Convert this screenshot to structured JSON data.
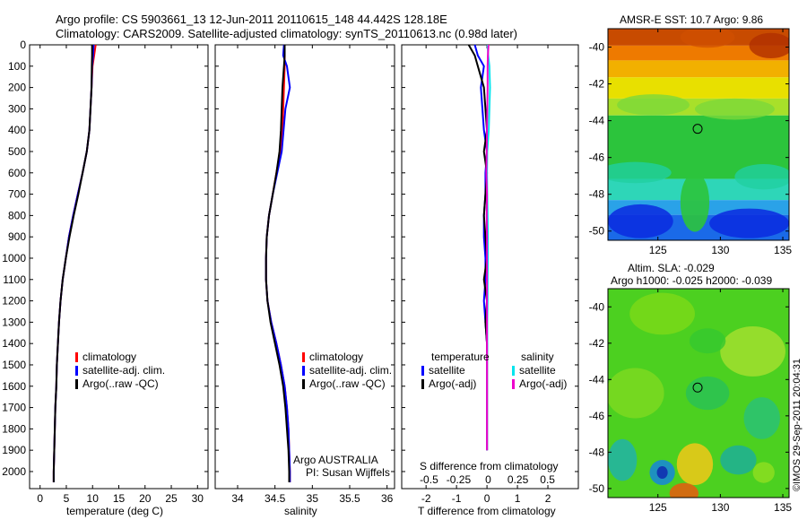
{
  "header": {
    "title_line1": "Argo profile: CS 5903661_13 12-Jun-2011 20110615_148 44.442S 128.18E",
    "title_line2": "Climatology: CARS2009. Satellite-adjusted climatology: synTS_20110613.nc (0.98d later)"
  },
  "map_sst": {
    "title": "AMSR-E SST: 10.7  Argo: 9.86",
    "xticks": [
      "125",
      "130",
      "135"
    ],
    "yticks": [
      "-40",
      "-42",
      "-44",
      "-46",
      "-48",
      "-50"
    ]
  },
  "map_sla": {
    "title1": "Altim. SLA: -0.029",
    "title2": "Argo h1000: -0.025 h2000: -0.039",
    "xticks": [
      "125",
      "130",
      "135"
    ],
    "yticks": [
      "-40",
      "-42",
      "-44",
      "-46",
      "-48",
      "-50"
    ]
  },
  "credit": "©IMOS 29-Sep-2011 20:04:31",
  "legends": {
    "climatology": "climatology",
    "satellite_adj": "satellite-adj. clim.",
    "argo": "Argo(..raw -QC)",
    "temperature": "temperature",
    "salinity": "salinity",
    "satellite": "satellite",
    "argo_adj": "Argo(-adj)"
  },
  "annotations": {
    "argo_country": "Argo AUSTRALIA",
    "pi": "PI: Susan Wijffels",
    "s_diff_label": "S difference from climatology",
    "s_diff_ticks": [
      "-0.5",
      "-0.25",
      "0",
      "0.25",
      "0.5"
    ]
  },
  "colors": {
    "climatology": "#ff0000",
    "satellite_adj": "#0000ff",
    "argo": "#000000",
    "sal_satellite": "#00e5ee",
    "sal_argo": "#ee00cc",
    "float_marker": "#000000"
  },
  "chart_data": [
    {
      "type": "line",
      "xlabel": "temperature (deg C)",
      "ylabel": "",
      "xlim": [
        -2,
        32
      ],
      "ylim": [
        2080,
        0
      ],
      "xticks": [
        0,
        5,
        10,
        15,
        20,
        25,
        30
      ],
      "yticks": [
        0,
        100,
        200,
        300,
        400,
        500,
        600,
        700,
        800,
        900,
        1000,
        1100,
        1200,
        1300,
        1400,
        1500,
        1600,
        1700,
        1800,
        1900,
        2000
      ],
      "series": [
        {
          "name": "climatology",
          "color": "#ff0000",
          "x": [
            10.6,
            10.3,
            10.0,
            9.8,
            9.4,
            8.9,
            8.1,
            7.2,
            6.3,
            5.5,
            4.9,
            4.3,
            3.9,
            3.6,
            3.4,
            3.2,
            3.1,
            2.9,
            2.8,
            2.7,
            2.6,
            2.6
          ],
          "y": [
            0,
            50,
            100,
            200,
            400,
            500,
            600,
            700,
            800,
            900,
            1000,
            1100,
            1200,
            1300,
            1400,
            1500,
            1600,
            1700,
            1800,
            1900,
            2000,
            2050
          ]
        },
        {
          "name": "satellite-adj. clim.",
          "color": "#0000ff",
          "x": [
            10.2,
            10.1,
            9.9,
            9.8,
            9.4,
            8.9,
            8.1,
            7.2,
            6.3,
            5.5,
            4.9,
            4.3,
            3.9,
            3.6,
            3.4,
            3.2,
            3.1,
            2.9,
            2.8,
            2.7,
            2.6,
            2.6
          ],
          "y": [
            0,
            50,
            100,
            200,
            400,
            500,
            600,
            700,
            800,
            900,
            1000,
            1100,
            1200,
            1300,
            1400,
            1500,
            1600,
            1700,
            1800,
            1900,
            2000,
            2050
          ]
        },
        {
          "name": "Argo(..raw -QC)",
          "color": "#000000",
          "x": [
            9.9,
            9.9,
            9.85,
            9.8,
            9.4,
            8.9,
            8.1,
            7.3,
            6.4,
            5.6,
            4.9,
            4.3,
            3.9,
            3.6,
            3.4,
            3.2,
            3.1,
            2.9,
            2.8,
            2.7,
            2.6,
            2.6
          ],
          "y": [
            0,
            50,
            100,
            200,
            400,
            500,
            600,
            700,
            800,
            900,
            1000,
            1100,
            1200,
            1300,
            1400,
            1500,
            1600,
            1700,
            1800,
            1900,
            2000,
            2050
          ]
        }
      ]
    },
    {
      "type": "line",
      "xlabel": "salinity",
      "ylabel": "",
      "xlim": [
        33.7,
        36.1
      ],
      "ylim": [
        2080,
        0
      ],
      "xticks": [
        34,
        34.5,
        35,
        35.5,
        36
      ],
      "yticks": [
        0,
        100,
        200,
        300,
        400,
        500,
        600,
        700,
        800,
        900,
        1000,
        1100,
        1200,
        1300,
        1400,
        1500,
        1600,
        1700,
        1800,
        1900,
        2000
      ],
      "series": [
        {
          "name": "climatology",
          "color": "#ff0000",
          "x": [
            34.63,
            34.63,
            34.63,
            34.62,
            34.6,
            34.57,
            34.52,
            34.47,
            34.42,
            34.39,
            34.38,
            34.38,
            34.4,
            34.45,
            34.52,
            34.58,
            34.63,
            34.66,
            34.68,
            34.69,
            34.7,
            34.7
          ],
          "y": [
            0,
            50,
            100,
            200,
            400,
            500,
            600,
            700,
            800,
            900,
            1000,
            1100,
            1200,
            1300,
            1400,
            1500,
            1600,
            1700,
            1800,
            1900,
            2000,
            2050
          ]
        },
        {
          "name": "satellite-adj. clim.",
          "color": "#0000ff",
          "x": [
            34.62,
            34.61,
            34.66,
            34.7,
            34.64,
            34.59,
            34.53,
            34.47,
            34.42,
            34.39,
            34.38,
            34.38,
            34.4,
            34.45,
            34.52,
            34.58,
            34.63,
            34.66,
            34.68,
            34.69,
            34.7,
            34.7
          ],
          "y": [
            0,
            50,
            100,
            200,
            300,
            500,
            600,
            700,
            800,
            900,
            1000,
            1100,
            1200,
            1300,
            1400,
            1500,
            1600,
            1700,
            1800,
            1900,
            2000,
            2050
          ]
        },
        {
          "name": "Argo(..raw -QC)",
          "color": "#000000",
          "x": [
            34.63,
            34.63,
            34.62,
            34.6,
            34.58,
            34.56,
            34.52,
            34.47,
            34.42,
            34.39,
            34.38,
            34.38,
            34.4,
            34.44,
            34.5,
            34.56,
            34.61,
            34.64,
            34.66,
            34.68,
            34.69,
            34.69
          ],
          "y": [
            0,
            50,
            100,
            200,
            400,
            500,
            600,
            700,
            800,
            900,
            1000,
            1100,
            1200,
            1300,
            1400,
            1500,
            1600,
            1700,
            1800,
            1900,
            2000,
            2050
          ]
        }
      ]
    },
    {
      "type": "line",
      "xlabel": "T difference from climatology",
      "ylabel": "",
      "xlim": [
        -2.8,
        3.0
      ],
      "ylim": [
        2080,
        0
      ],
      "xticks": [
        -2,
        -1,
        0,
        1,
        2
      ],
      "yticks": [
        0,
        100,
        200,
        300,
        400,
        500,
        600,
        700,
        800,
        900,
        1000,
        1100,
        1200,
        1300,
        1400,
        1500,
        1600,
        1700,
        1800,
        1900,
        2000
      ],
      "series": [
        {
          "name": "temperature satellite",
          "color": "#0000ff",
          "x": [
            -0.4,
            -0.3,
            -0.1,
            -0.2,
            -0.1,
            0.0,
            -0.05,
            -0.05,
            -0.1,
            -0.1,
            -0.05,
            -0.05,
            -0.1,
            -0.05,
            0.0,
            0.0,
            0.0,
            0.0,
            0.0,
            0.0
          ],
          "y": [
            0,
            50,
            100,
            200,
            400,
            500,
            600,
            700,
            800,
            900,
            1000,
            1100,
            1200,
            1300,
            1400,
            1500,
            1600,
            1700,
            1800,
            1900
          ]
        },
        {
          "name": "temperature Argo(-adj)",
          "color": "#000000",
          "x": [
            -0.6,
            -0.4,
            -0.3,
            -0.1,
            0.0,
            -0.1,
            0.0,
            -0.05,
            -0.1,
            -0.05,
            0.0,
            -0.1,
            0.0,
            -0.05,
            0.0,
            0.0,
            0.0,
            0.0,
            0.0,
            0.0
          ],
          "y": [
            0,
            50,
            100,
            200,
            400,
            500,
            600,
            700,
            800,
            900,
            1000,
            1100,
            1200,
            1300,
            1400,
            1500,
            1600,
            1700,
            1800,
            1900
          ]
        },
        {
          "name": "salinity satellite",
          "color": "#00e5ee",
          "x": [
            0.02,
            0.04,
            0.08,
            0.1,
            0.06,
            0.01,
            0.0,
            0.01,
            0.02,
            0.03,
            0.03,
            0.02,
            0.02,
            0.01,
            0.01,
            0.0,
            0.0,
            0.0,
            0.0,
            0.0
          ],
          "y": [
            0,
            50,
            100,
            200,
            400,
            500,
            600,
            700,
            800,
            900,
            1000,
            1100,
            1200,
            1300,
            1400,
            1500,
            1600,
            1700,
            1800,
            1900
          ]
        },
        {
          "name": "salinity Argo(-adj)",
          "color": "#ee00cc",
          "x": [
            0.05,
            0.03,
            0.02,
            0.02,
            0.0,
            -0.01,
            -0.02,
            0.0,
            -0.01,
            0.0,
            0.0,
            0.0,
            0.0,
            0.0,
            0.0,
            0.0,
            0.0,
            0.0,
            0.0,
            0.0
          ],
          "y": [
            0,
            50,
            100,
            200,
            400,
            500,
            600,
            700,
            800,
            900,
            1000,
            1100,
            1200,
            1300,
            1400,
            1500,
            1600,
            1700,
            1800,
            1900
          ]
        }
      ]
    },
    {
      "type": "heatmap",
      "title": "AMSR-E SST: 10.7  Argo: 9.86",
      "xlim": [
        121,
        135.5
      ],
      "ylim": [
        -50.5,
        -39
      ],
      "xticks": [
        125,
        130,
        135
      ],
      "yticks": [
        -40,
        -42,
        -44,
        -46,
        -48,
        -50
      ],
      "float_position": {
        "lon": 128.18,
        "lat": -44.442
      }
    },
    {
      "type": "heatmap",
      "title": "Altim. SLA: -0.029",
      "xlim": [
        121,
        135.5
      ],
      "ylim": [
        -50.5,
        -39
      ],
      "xticks": [
        125,
        130,
        135
      ],
      "yticks": [
        -40,
        -42,
        -44,
        -46,
        -48,
        -50
      ],
      "float_position": {
        "lon": 128.18,
        "lat": -44.442
      }
    }
  ]
}
